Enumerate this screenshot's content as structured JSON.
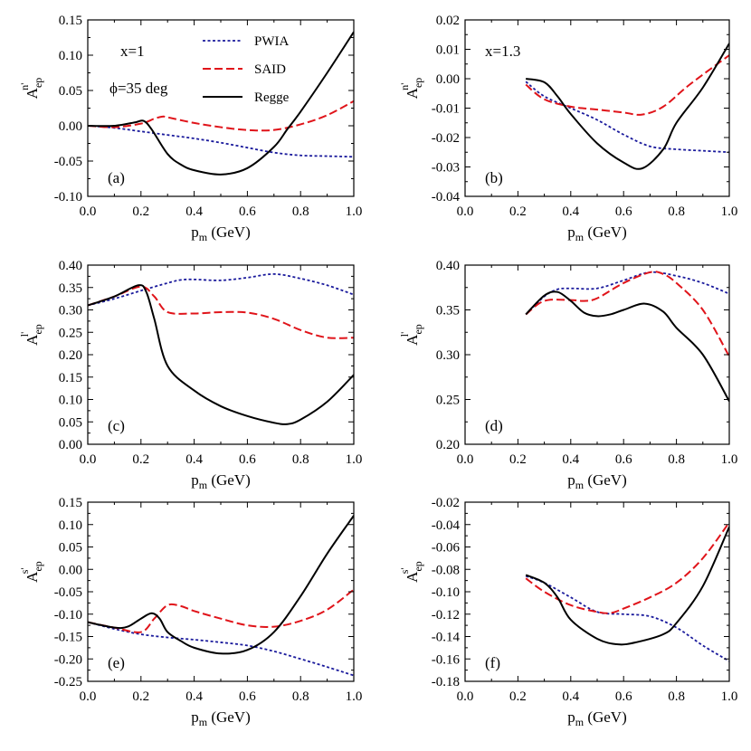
{
  "colors": {
    "PWIA": "#1a1a9c",
    "SAID": "#e0141a",
    "Regge": "#000000"
  },
  "annotations": {
    "x1": "x=1",
    "phi": "=35 deg",
    "phi_symbol": "ϕ",
    "x13": "x=1.3"
  },
  "legend": {
    "pwia": "PWIA",
    "said": "SAID",
    "regge": "Regge"
  },
  "chart_data": [
    {
      "type": "line",
      "panel": "(a)",
      "ylabel_main": "A",
      "ylabel_sub": "ep",
      "ylabel_sup": "n'",
      "xlabel_main": "p",
      "xlabel_sub": "m",
      "xlabel_unit": " (GeV)",
      "xlim": [
        0,
        1
      ],
      "ylim": [
        -0.1,
        0.15
      ],
      "xticks": [
        "0.0",
        "0.2",
        "0.4",
        "0.6",
        "0.8",
        "1.0"
      ],
      "yticks": [
        "-0.10",
        "-0.05",
        "0.00",
        "0.05",
        "0.10",
        "0.15"
      ],
      "series": [
        {
          "name": "PWIA",
          "x": [
            0,
            0.1,
            0.2,
            0.3,
            0.4,
            0.5,
            0.6,
            0.7,
            0.8,
            0.9,
            1.0
          ],
          "y": [
            0,
            -0.003,
            -0.008,
            -0.013,
            -0.018,
            -0.024,
            -0.031,
            -0.038,
            -0.042,
            -0.043,
            -0.044
          ]
        },
        {
          "name": "SAID",
          "x": [
            0,
            0.1,
            0.2,
            0.25,
            0.28,
            0.3,
            0.4,
            0.5,
            0.6,
            0.7,
            0.8,
            0.9,
            1.0
          ],
          "y": [
            0,
            -0.002,
            0.003,
            0.01,
            0.013,
            0.012,
            0.004,
            -0.002,
            -0.006,
            -0.006,
            0.002,
            0.015,
            0.035
          ]
        },
        {
          "name": "Regge",
          "x": [
            0,
            0.1,
            0.18,
            0.21,
            0.24,
            0.3,
            0.35,
            0.4,
            0.5,
            0.6,
            0.7,
            0.75,
            0.8,
            0.9,
            1.0
          ],
          "y": [
            0,
            0,
            0.005,
            0.007,
            -0.005,
            -0.04,
            -0.055,
            -0.063,
            -0.069,
            -0.06,
            -0.03,
            -0.005,
            0.02,
            0.075,
            0.133
          ]
        }
      ]
    },
    {
      "type": "line",
      "panel": "(b)",
      "ylabel_main": "A",
      "ylabel_sub": "ep",
      "ylabel_sup": "n'",
      "xlabel_main": "p",
      "xlabel_sub": "m",
      "xlabel_unit": " (GeV)",
      "xlim": [
        0,
        1
      ],
      "ylim": [
        -0.04,
        0.02
      ],
      "xticks": [
        "0.0",
        "0.2",
        "0.4",
        "0.6",
        "0.8",
        "1.0"
      ],
      "yticks": [
        "-0.04",
        "-0.03",
        "-0.02",
        "-0.01",
        "0.00",
        "0.01",
        "0.02"
      ],
      "series": [
        {
          "name": "PWIA",
          "x": [
            0.23,
            0.3,
            0.4,
            0.5,
            0.6,
            0.7,
            0.8,
            0.9,
            1.0
          ],
          "y": [
            -0.001,
            -0.006,
            -0.01,
            -0.014,
            -0.019,
            -0.023,
            -0.024,
            -0.0245,
            -0.025
          ]
        },
        {
          "name": "SAID",
          "x": [
            0.23,
            0.3,
            0.4,
            0.5,
            0.6,
            0.67,
            0.75,
            0.85,
            1.0
          ],
          "y": [
            -0.002,
            -0.007,
            -0.0095,
            -0.0105,
            -0.0115,
            -0.0122,
            -0.0095,
            -0.002,
            0.008
          ]
        },
        {
          "name": "Regge",
          "x": [
            0.23,
            0.3,
            0.35,
            0.4,
            0.5,
            0.6,
            0.67,
            0.75,
            0.8,
            0.9,
            1.0
          ],
          "y": [
            0,
            -0.0012,
            -0.006,
            -0.012,
            -0.022,
            -0.0285,
            -0.0305,
            -0.024,
            -0.015,
            -0.003,
            0.012
          ]
        }
      ]
    },
    {
      "type": "line",
      "panel": "(c)",
      "ylabel_main": "A",
      "ylabel_sub": "ep",
      "ylabel_sup": "l'",
      "xlabel_main": "p",
      "xlabel_sub": "m",
      "xlabel_unit": " (GeV)",
      "xlim": [
        0,
        1
      ],
      "ylim": [
        0,
        0.4
      ],
      "xticks": [
        "0.0",
        "0.2",
        "0.4",
        "0.6",
        "0.8",
        "1.0"
      ],
      "yticks": [
        "0.00",
        "0.05",
        "0.10",
        "0.15",
        "0.20",
        "0.25",
        "0.30",
        "0.35",
        "0.40"
      ],
      "series": [
        {
          "name": "PWIA",
          "x": [
            0,
            0.1,
            0.2,
            0.3,
            0.35,
            0.4,
            0.5,
            0.6,
            0.7,
            0.8,
            0.9,
            1.0
          ],
          "y": [
            0.31,
            0.325,
            0.343,
            0.36,
            0.367,
            0.368,
            0.366,
            0.372,
            0.38,
            0.37,
            0.355,
            0.334
          ]
        },
        {
          "name": "SAID",
          "x": [
            0,
            0.1,
            0.2,
            0.25,
            0.3,
            0.4,
            0.5,
            0.6,
            0.7,
            0.8,
            0.9,
            1.0
          ],
          "y": [
            0.31,
            0.33,
            0.352,
            0.33,
            0.295,
            0.292,
            0.295,
            0.294,
            0.28,
            0.255,
            0.238,
            0.238
          ]
        },
        {
          "name": "Regge",
          "x": [
            0,
            0.1,
            0.19,
            0.22,
            0.25,
            0.3,
            0.4,
            0.5,
            0.6,
            0.7,
            0.75,
            0.8,
            0.9,
            1.0
          ],
          "y": [
            0.31,
            0.33,
            0.355,
            0.34,
            0.28,
            0.175,
            0.12,
            0.085,
            0.063,
            0.048,
            0.045,
            0.055,
            0.095,
            0.155
          ]
        }
      ]
    },
    {
      "type": "line",
      "panel": "(d)",
      "ylabel_main": "A",
      "ylabel_sub": "ep",
      "ylabel_sup": "l'",
      "xlabel_main": "p",
      "xlabel_sub": "m",
      "xlabel_unit": " (GeV)",
      "xlim": [
        0,
        1
      ],
      "ylim": [
        0.2,
        0.4
      ],
      "xticks": [
        "0.0",
        "0.2",
        "0.4",
        "0.6",
        "0.8",
        "1.0"
      ],
      "yticks": [
        "0.20",
        "0.25",
        "0.30",
        "0.35",
        "0.40"
      ],
      "series": [
        {
          "name": "PWIA",
          "x": [
            0.23,
            0.3,
            0.35,
            0.4,
            0.5,
            0.6,
            0.7,
            0.8,
            0.9,
            1.0
          ],
          "y": [
            0.345,
            0.365,
            0.373,
            0.374,
            0.374,
            0.383,
            0.392,
            0.388,
            0.38,
            0.368
          ]
        },
        {
          "name": "SAID",
          "x": [
            0.23,
            0.3,
            0.4,
            0.45,
            0.5,
            0.6,
            0.7,
            0.75,
            0.8,
            0.9,
            1.0
          ],
          "y": [
            0.345,
            0.36,
            0.361,
            0.36,
            0.363,
            0.38,
            0.392,
            0.39,
            0.38,
            0.35,
            0.298
          ]
        },
        {
          "name": "Regge",
          "x": [
            0.23,
            0.3,
            0.35,
            0.4,
            0.45,
            0.5,
            0.55,
            0.6,
            0.68,
            0.75,
            0.8,
            0.9,
            1.0
          ],
          "y": [
            0.345,
            0.366,
            0.37,
            0.36,
            0.347,
            0.343,
            0.345,
            0.35,
            0.357,
            0.348,
            0.33,
            0.3,
            0.248
          ]
        }
      ]
    },
    {
      "type": "line",
      "panel": "(e)",
      "ylabel_main": "A",
      "ylabel_sub": "ep",
      "ylabel_sup": "s'",
      "xlabel_main": "p",
      "xlabel_sub": "m",
      "xlabel_unit": " (GeV)",
      "xlim": [
        0,
        1
      ],
      "ylim": [
        -0.25,
        0.15
      ],
      "xticks": [
        "0.0",
        "0.2",
        "0.4",
        "0.6",
        "0.8",
        "1.0"
      ],
      "yticks": [
        "-0.25",
        "-0.20",
        "-0.15",
        "-0.10",
        "-0.05",
        "0.00",
        "0.05",
        "0.10",
        "0.15"
      ],
      "series": [
        {
          "name": "PWIA",
          "x": [
            0,
            0.1,
            0.2,
            0.3,
            0.4,
            0.5,
            0.6,
            0.7,
            0.8,
            0.9,
            1.0
          ],
          "y": [
            -0.118,
            -0.133,
            -0.145,
            -0.152,
            -0.157,
            -0.163,
            -0.17,
            -0.183,
            -0.2,
            -0.218,
            -0.237
          ]
        },
        {
          "name": "SAID",
          "x": [
            0,
            0.1,
            0.2,
            0.25,
            0.3,
            0.35,
            0.4,
            0.5,
            0.6,
            0.7,
            0.8,
            0.9,
            1.0
          ],
          "y": [
            -0.118,
            -0.13,
            -0.14,
            -0.11,
            -0.08,
            -0.082,
            -0.093,
            -0.11,
            -0.125,
            -0.128,
            -0.115,
            -0.09,
            -0.045
          ]
        },
        {
          "name": "Regge",
          "x": [
            0,
            0.1,
            0.15,
            0.2,
            0.24,
            0.27,
            0.3,
            0.35,
            0.4,
            0.5,
            0.6,
            0.7,
            0.8,
            0.9,
            1.0
          ],
          "y": [
            -0.118,
            -0.13,
            -0.128,
            -0.11,
            -0.098,
            -0.11,
            -0.14,
            -0.16,
            -0.175,
            -0.188,
            -0.18,
            -0.14,
            -0.06,
            0.035,
            0.12
          ]
        }
      ]
    },
    {
      "type": "line",
      "panel": "(f)",
      "ylabel_main": "A",
      "ylabel_sub": "ep",
      "ylabel_sup": "s'",
      "xlabel_main": "p",
      "xlabel_sub": "m",
      "xlabel_unit": " (GeV)",
      "xlim": [
        0,
        1
      ],
      "ylim": [
        -0.18,
        -0.02
      ],
      "xticks": [
        "0.0",
        "0.2",
        "0.4",
        "0.6",
        "0.8",
        "1.0"
      ],
      "yticks": [
        "-0.18",
        "-0.16",
        "-0.14",
        "-0.12",
        "-0.10",
        "-0.08",
        "-0.06",
        "-0.04",
        "-0.02"
      ],
      "series": [
        {
          "name": "PWIA",
          "x": [
            0.23,
            0.3,
            0.4,
            0.5,
            0.6,
            0.7,
            0.8,
            0.9,
            1.0
          ],
          "y": [
            -0.086,
            -0.092,
            -0.105,
            -0.118,
            -0.12,
            -0.122,
            -0.132,
            -0.148,
            -0.162
          ]
        },
        {
          "name": "SAID",
          "x": [
            0.23,
            0.3,
            0.4,
            0.5,
            0.55,
            0.6,
            0.7,
            0.8,
            0.9,
            1.0
          ],
          "y": [
            -0.088,
            -0.1,
            -0.112,
            -0.118,
            -0.119,
            -0.115,
            -0.105,
            -0.092,
            -0.07,
            -0.038
          ]
        },
        {
          "name": "Regge",
          "x": [
            0.23,
            0.3,
            0.35,
            0.4,
            0.5,
            0.58,
            0.65,
            0.75,
            0.8,
            0.9,
            1.0
          ],
          "y": [
            -0.085,
            -0.092,
            -0.105,
            -0.125,
            -0.142,
            -0.147,
            -0.145,
            -0.138,
            -0.128,
            -0.095,
            -0.042
          ]
        }
      ]
    }
  ]
}
